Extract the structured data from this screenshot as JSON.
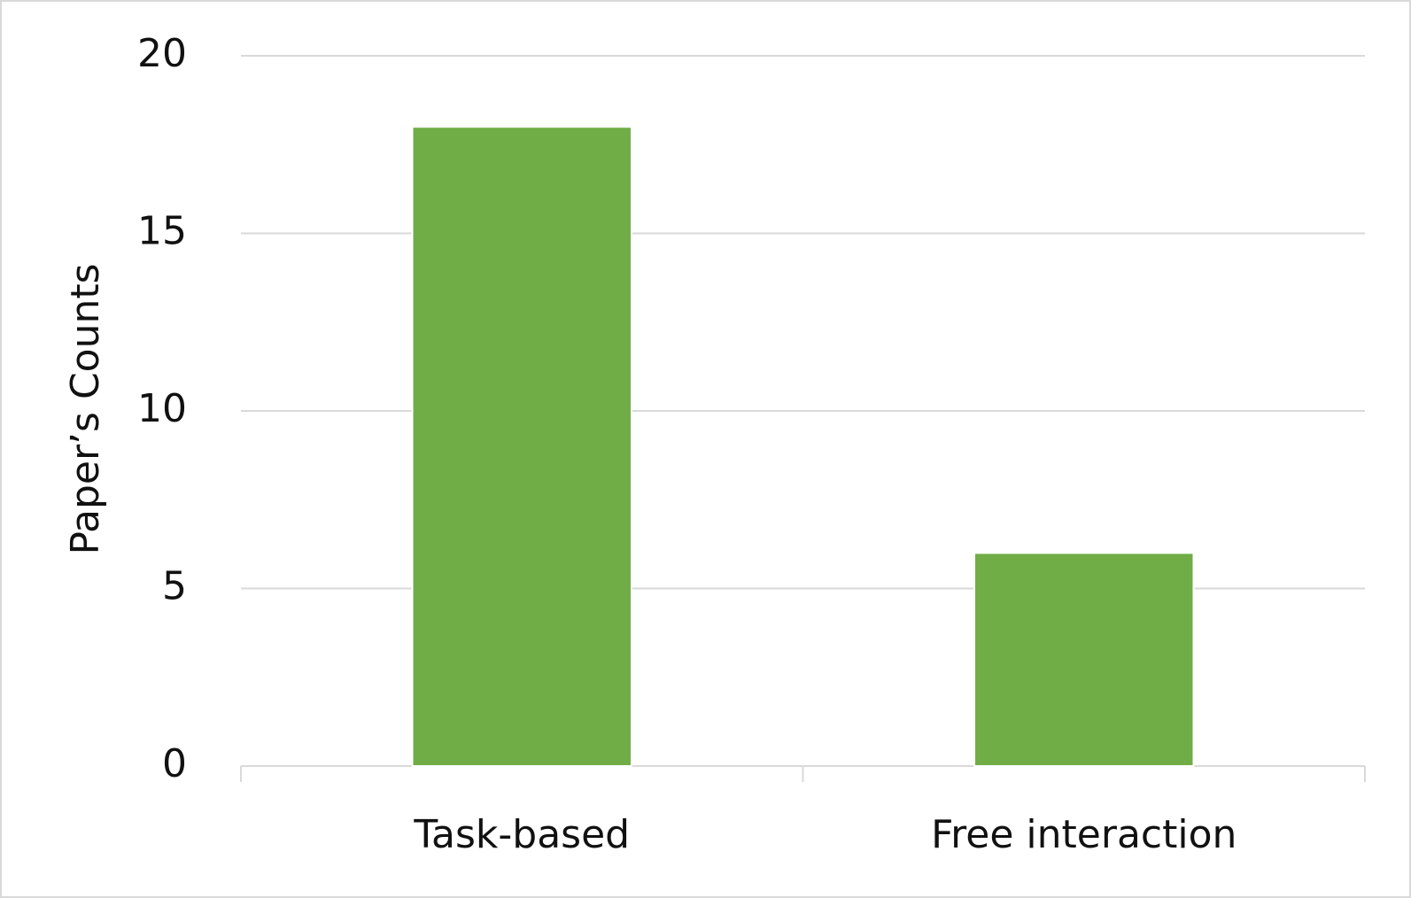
{
  "chart_data": {
    "type": "bar",
    "y_label": "Paper’s Counts",
    "categories": [
      "Task-based",
      "Free interaction"
    ],
    "values": [
      18,
      6
    ],
    "color": "#70ad47",
    "ylim": [
      0,
      20
    ],
    "yticks": [
      0,
      5,
      10,
      15,
      20
    ],
    "grid": true
  }
}
